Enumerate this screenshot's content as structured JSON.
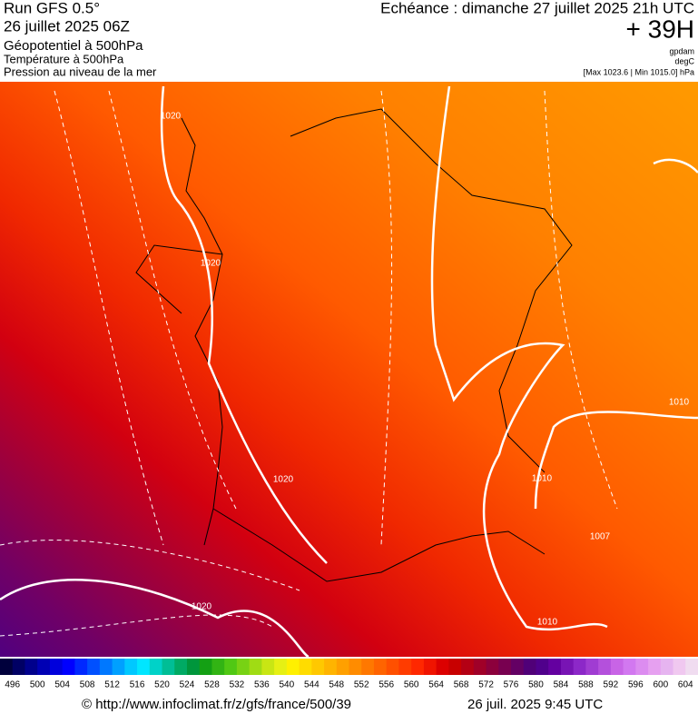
{
  "header": {
    "run": "Run GFS 0.5°",
    "date": "26 juillet 2025 06Z",
    "field1": "Géopotentiel à 500hPa",
    "field2": "Température à 500hPa",
    "field3": "Pression au niveau de la mer",
    "valid": "Echéance : dimanche 27 juillet 2025 21h UTC",
    "lead": "+ 39H",
    "unit1": "gpdam",
    "unit2": "degC",
    "range": "[Max 1023.6 | Min 1015.0] hPa"
  },
  "map": {
    "contour_labels": [
      "1020",
      "1020",
      "1020",
      "1020",
      "1010",
      "1010",
      "1010",
      "1007"
    ]
  },
  "colorbar": {
    "labels": [
      496,
      500,
      504,
      508,
      512,
      516,
      520,
      524,
      528,
      532,
      536,
      540,
      544,
      548,
      552,
      556,
      560,
      564,
      568,
      572,
      576,
      580,
      584,
      588,
      592,
      596,
      600,
      604
    ],
    "colors": [
      "#00003c",
      "#000064",
      "#00008c",
      "#0000b4",
      "#0000dc",
      "#0000ff",
      "#0028ff",
      "#0050ff",
      "#0078ff",
      "#00a0ff",
      "#00c8ff",
      "#00e6ff",
      "#00d2c8",
      "#00be96",
      "#00aa64",
      "#00963c",
      "#14a014",
      "#32b414",
      "#50c814",
      "#78d214",
      "#a0dc14",
      "#c8e614",
      "#e6f014",
      "#fff000",
      "#ffdc00",
      "#ffc800",
      "#ffb400",
      "#ffa000",
      "#ff8c00",
      "#ff7800",
      "#ff6400",
      "#ff5000",
      "#ff3c00",
      "#ff2800",
      "#f01400",
      "#dc0000",
      "#c80000",
      "#b40014",
      "#a00028",
      "#8c003c",
      "#780050",
      "#640064",
      "#500078",
      "#50008c",
      "#6400a0",
      "#7814b4",
      "#8c28c8",
      "#a03cd2",
      "#b450dc",
      "#c864e6",
      "#d278f0",
      "#dc8cf0",
      "#e6a0f0",
      "#e6b4f0",
      "#f0c8f0",
      "#f0dcf0"
    ]
  },
  "footer": {
    "source": "© http://www.infoclimat.fr/z/gfs/france/500/39",
    "stamp": "26 juil. 2025  9:45 UTC"
  }
}
